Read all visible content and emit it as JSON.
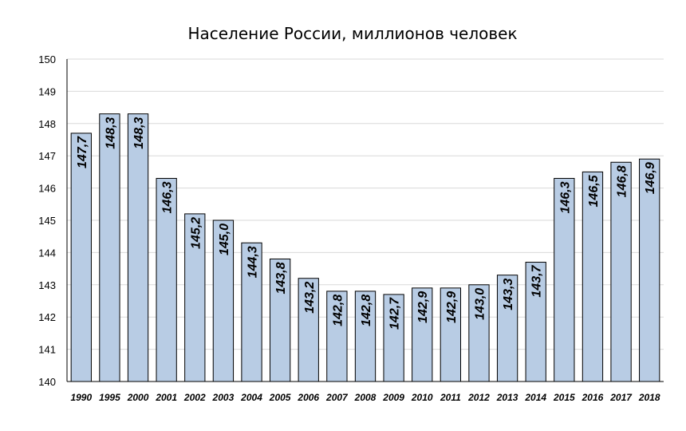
{
  "chart_data": {
    "type": "bar",
    "title": "Население России, миллионов человек",
    "xlabel": "",
    "ylabel": "",
    "ylim": [
      140,
      150
    ],
    "yticks": [
      140,
      141,
      142,
      143,
      144,
      145,
      146,
      147,
      148,
      149,
      150
    ],
    "grid": true,
    "categories": [
      "1990",
      "1995",
      "2000",
      "2001",
      "2002",
      "2003",
      "2004",
      "2005",
      "2006",
      "2007",
      "2008",
      "2009",
      "2010",
      "2011",
      "2012",
      "2013",
      "2014",
      "2015",
      "2016",
      "2017",
      "2018"
    ],
    "values": [
      147.7,
      148.3,
      148.3,
      146.3,
      145.2,
      145.0,
      144.3,
      143.8,
      143.2,
      142.8,
      142.8,
      142.7,
      142.9,
      142.9,
      143.0,
      143.3,
      143.7,
      146.3,
      146.5,
      146.8,
      146.9
    ],
    "data_labels": [
      "147,7",
      "148,3",
      "148,3",
      "146,3",
      "145,2",
      "145,0",
      "144,3",
      "143,8",
      "143,2",
      "142,8",
      "142,8",
      "142,7",
      "142,9",
      "142,9",
      "143,0",
      "143,3",
      "143,7",
      "146,3",
      "146,5",
      "146,8",
      "146,9"
    ],
    "bar_color": "#b8cce4"
  }
}
